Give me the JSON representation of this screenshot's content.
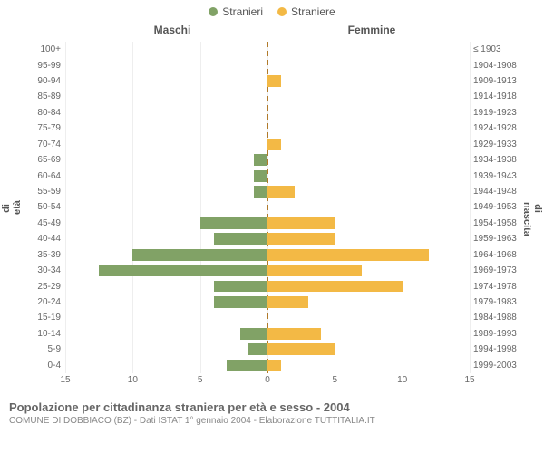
{
  "chart": {
    "type": "bar",
    "legend": {
      "items": [
        {
          "label": "Stranieri",
          "color": "#81a266"
        },
        {
          "label": "Straniere",
          "color": "#f3b945"
        }
      ]
    },
    "headers": {
      "left": "Maschi",
      "right": "Femmine"
    },
    "axis_labels": {
      "left": "Fasce di età",
      "right": "Anni di nascita"
    },
    "background_color": "#ffffff",
    "grid_color": "#eeeeee",
    "zero_line_color": "#b07a2a",
    "label_color": "#666666",
    "label_fontsize": 10,
    "bar_height_ratio": 0.74,
    "x": {
      "max": 15,
      "ticks_left": [
        15,
        10,
        5,
        0
      ],
      "ticks_right": [
        5,
        10,
        15
      ]
    },
    "rows": [
      {
        "age": "100+",
        "birth": "≤ 1903",
        "m": 0,
        "f": 0
      },
      {
        "age": "95-99",
        "birth": "1904-1908",
        "m": 0,
        "f": 0
      },
      {
        "age": "90-94",
        "birth": "1909-1913",
        "m": 0,
        "f": 1
      },
      {
        "age": "85-89",
        "birth": "1914-1918",
        "m": 0,
        "f": 0
      },
      {
        "age": "80-84",
        "birth": "1919-1923",
        "m": 0,
        "f": 0
      },
      {
        "age": "75-79",
        "birth": "1924-1928",
        "m": 0,
        "f": 0
      },
      {
        "age": "70-74",
        "birth": "1929-1933",
        "m": 0,
        "f": 1
      },
      {
        "age": "65-69",
        "birth": "1934-1938",
        "m": 1,
        "f": 0
      },
      {
        "age": "60-64",
        "birth": "1939-1943",
        "m": 1,
        "f": 0
      },
      {
        "age": "55-59",
        "birth": "1944-1948",
        "m": 1,
        "f": 2
      },
      {
        "age": "50-54",
        "birth": "1949-1953",
        "m": 0,
        "f": 0
      },
      {
        "age": "45-49",
        "birth": "1954-1958",
        "m": 5,
        "f": 5
      },
      {
        "age": "40-44",
        "birth": "1959-1963",
        "m": 4,
        "f": 5
      },
      {
        "age": "35-39",
        "birth": "1964-1968",
        "m": 10,
        "f": 12
      },
      {
        "age": "30-34",
        "birth": "1969-1973",
        "m": 12.5,
        "f": 7
      },
      {
        "age": "25-29",
        "birth": "1974-1978",
        "m": 4,
        "f": 10
      },
      {
        "age": "20-24",
        "birth": "1979-1983",
        "m": 4,
        "f": 3
      },
      {
        "age": "15-19",
        "birth": "1984-1988",
        "m": 0,
        "f": 0
      },
      {
        "age": "10-14",
        "birth": "1989-1993",
        "m": 2,
        "f": 4
      },
      {
        "age": "5-9",
        "birth": "1994-1998",
        "m": 1.5,
        "f": 5
      },
      {
        "age": "0-4",
        "birth": "1999-2003",
        "m": 3,
        "f": 1
      }
    ]
  },
  "footer": {
    "line1": "Popolazione per cittadinanza straniera per età e sesso - 2004",
    "line2": "COMUNE DI DOBBIACO (BZ) - Dati ISTAT 1° gennaio 2004 - Elaborazione TUTTITALIA.IT"
  }
}
